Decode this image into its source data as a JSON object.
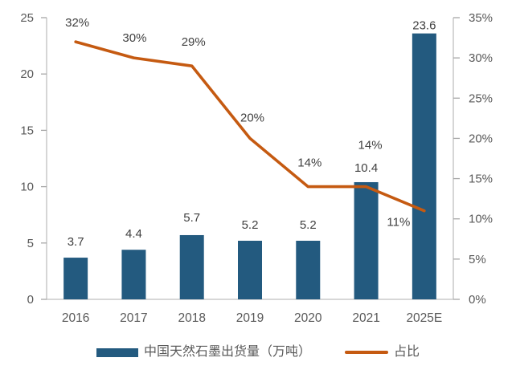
{
  "chart_data": {
    "type": "bar",
    "combo": "bar+line",
    "title": "",
    "categories": [
      "2016",
      "2017",
      "2018",
      "2019",
      "2020",
      "2021",
      "2025E"
    ],
    "series": [
      {
        "name": "中国天然石墨出货量（万吨）",
        "type": "bar",
        "axis": "left",
        "values": [
          3.7,
          4.4,
          5.7,
          5.2,
          5.2,
          10.4,
          23.6
        ],
        "labels": [
          "3.7",
          "4.4",
          "5.7",
          "5.2",
          "5.2",
          "10.4",
          "23.6"
        ],
        "color": "#235A7F"
      },
      {
        "name": "占比",
        "type": "line",
        "axis": "right",
        "values": [
          32,
          30,
          29,
          20,
          14,
          14,
          11
        ],
        "labels": [
          "32%",
          "30%",
          "29%",
          "20%",
          "14%",
          "14%",
          "11%"
        ],
        "color": "#C55A11"
      }
    ],
    "left_axis": {
      "min": 0,
      "max": 25,
      "step": 5,
      "ticks": [
        "0",
        "5",
        "10",
        "15",
        "20",
        "25"
      ]
    },
    "right_axis": {
      "min": 0,
      "max": 35,
      "step": 5,
      "ticks": [
        "0%",
        "5%",
        "10%",
        "15%",
        "20%",
        "25%",
        "30%",
        "35%"
      ]
    },
    "grid": false,
    "legend_position": "bottom",
    "colors": {
      "bar": "#235A7F",
      "line": "#C55A11",
      "axis_line": "#BFBFBF",
      "tick": "#A6A6A6",
      "axis_text": "#595959",
      "data_label_text": "#404040"
    }
  }
}
